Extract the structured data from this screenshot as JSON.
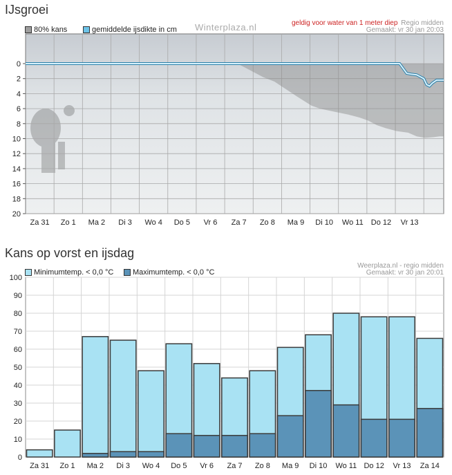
{
  "chart_data": [
    {
      "type": "line",
      "title": "IJsgroei",
      "watermark": "Winterplaza.nl",
      "note": "geldig voor water van 1 meter diep",
      "region": "Regio midden",
      "made": "Gemaakt: vr 30 jan 20:03",
      "legend": [
        "80% kans",
        "gemiddelde ijsdikte in cm"
      ],
      "colors": {
        "band": "#8a8a8a",
        "line": "#6cc3e8"
      },
      "ylim": [
        0,
        20
      ],
      "y_reversed": true,
      "yticks": [
        0,
        2,
        4,
        6,
        8,
        10,
        12,
        14,
        16,
        18,
        20
      ],
      "categories": [
        "Za 31",
        "Zo 1",
        "Ma 2",
        "Di 3",
        "Wo 4",
        "Do 5",
        "Vr 6",
        "Za 7",
        "Zo 8",
        "Ma 9",
        "Di 10",
        "Wo 11",
        "Do 12",
        "Vr 13"
      ],
      "x_days": [
        0,
        13.5
      ],
      "series": [
        {
          "name": "gemiddelde ijsdikte in cm",
          "points": [
            [
              0,
              0
            ],
            [
              12.6,
              0
            ],
            [
              12.85,
              1.3
            ],
            [
              13.0,
              1.4
            ],
            [
              13.2,
              1.5
            ],
            [
              13.45,
              2.0
            ],
            [
              13.55,
              2.8
            ],
            [
              13.65,
              3.0
            ],
            [
              13.75,
              2.6
            ],
            [
              13.9,
              2.2
            ],
            [
              14.0,
              2.2
            ]
          ]
        },
        {
          "name": "80% kans",
          "points": [
            [
              6.9,
              0
            ],
            [
              7.3,
              0.8
            ],
            [
              7.8,
              1.8
            ],
            [
              8.2,
              2.4
            ],
            [
              8.6,
              3.4
            ],
            [
              9.0,
              4.4
            ],
            [
              9.5,
              5.6
            ],
            [
              9.8,
              6.0
            ],
            [
              10.3,
              6.4
            ],
            [
              10.8,
              6.8
            ],
            [
              11.2,
              7.2
            ],
            [
              11.5,
              7.6
            ],
            [
              11.8,
              8.2
            ],
            [
              12.1,
              8.6
            ],
            [
              12.5,
              9.0
            ],
            [
              12.9,
              9.2
            ],
            [
              13.2,
              9.7
            ],
            [
              13.5,
              9.9
            ],
            [
              13.8,
              9.8
            ],
            [
              14.0,
              9.7
            ]
          ]
        }
      ]
    },
    {
      "type": "bar",
      "title": "Kans op vorst en ijsdag",
      "source": "Weerplaza.nl - regio midden",
      "made": "Gemaakt: vr 30 jan 20:01",
      "ylim": [
        0,
        100
      ],
      "yticks": [
        0,
        10,
        20,
        30,
        40,
        50,
        60,
        70,
        80,
        90,
        100
      ],
      "categories": [
        "Za 31",
        "Zo 1",
        "Ma 2",
        "Di 3",
        "Wo 4",
        "Do 5",
        "Vr 6",
        "Za 7",
        "Zo 8",
        "Ma 9",
        "Di 10",
        "Wo 11",
        "Do 12",
        "Vr 13",
        "Za 14"
      ],
      "series": [
        {
          "name": "Minimumtemp. < 0,0 °C",
          "color": "#a9e2f3",
          "values": [
            4,
            15,
            67,
            65,
            48,
            63,
            52,
            44,
            48,
            61,
            68,
            80,
            78,
            78,
            66
          ]
        },
        {
          "name": "Maximumtemp. < 0,0 °C",
          "color": "#5b93b8",
          "values": [
            0,
            0,
            2,
            3,
            3,
            13,
            12,
            12,
            13,
            23,
            37,
            29,
            21,
            21,
            27
          ]
        }
      ]
    }
  ]
}
